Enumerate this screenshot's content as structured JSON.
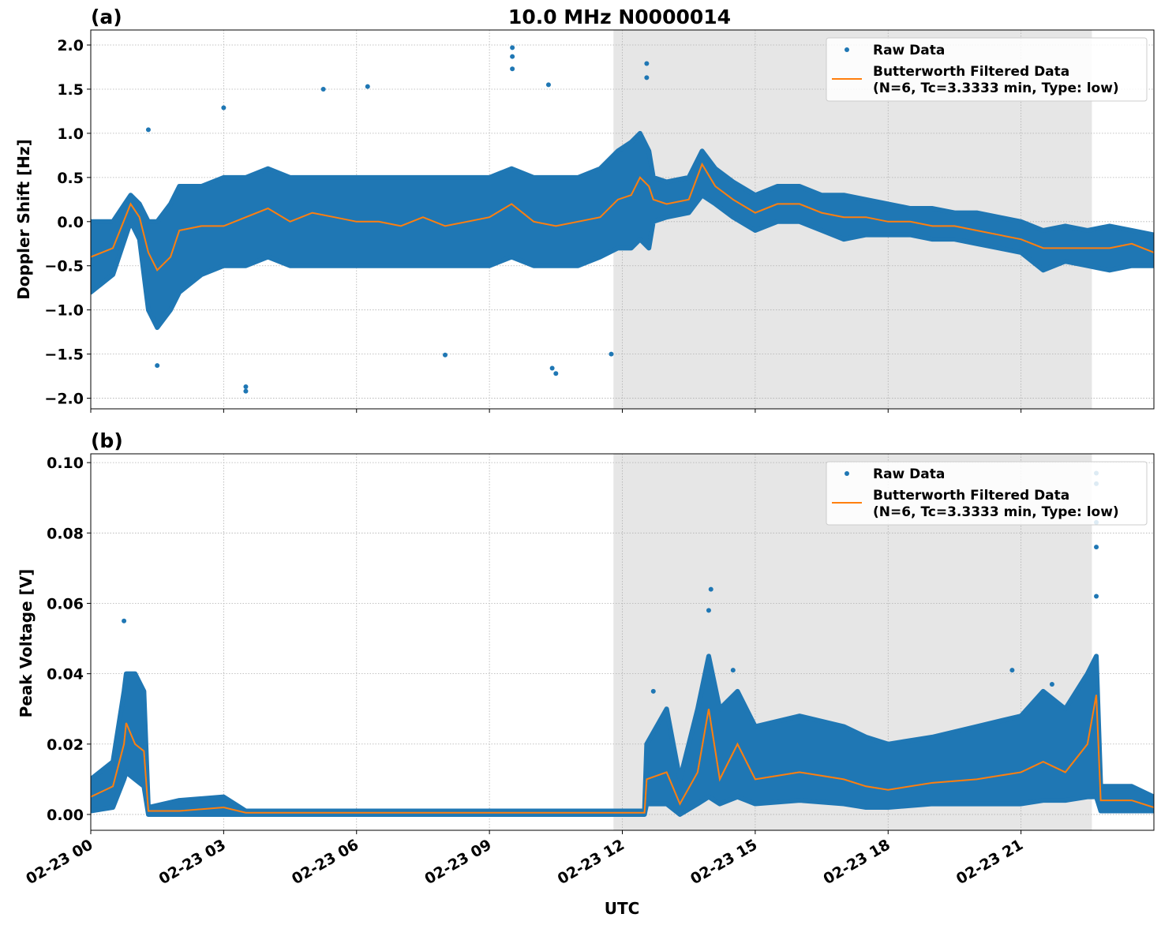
{
  "chart_data": [
    {
      "type": "scatter",
      "panel_label": "(a)",
      "title": "10.0 MHz N0000014",
      "xlabel": "",
      "ylabel": "Doppler Shift [Hz]",
      "xlim": [
        "02-23 00:00",
        "02-24 00:00"
      ],
      "ylim": [
        -2.12,
        2.17
      ],
      "yticks": [
        -2.0,
        -1.5,
        -1.0,
        -0.5,
        0.0,
        0.5,
        1.0,
        1.5,
        2.0
      ],
      "ytick_labels": [
        "−2.0",
        "−1.5",
        "−1.0",
        "−0.5",
        "0.0",
        "0.5",
        "1.0",
        "1.5",
        "2.0"
      ],
      "grid": true,
      "shaded_span": [
        "11:48",
        "22:36"
      ],
      "legend": {
        "placement": "top-right",
        "entries": [
          "Raw Data",
          "Butterworth Filtered Data",
          "(N=6, Tc=3.3333 min, Type: low)"
        ]
      },
      "series_columns": [
        "time",
        "filtered",
        "raw_low",
        "raw_high"
      ],
      "series": [
        [
          "00:00",
          -0.4,
          -0.8,
          0.0
        ],
        [
          "00:30",
          -0.3,
          -0.6,
          0.0
        ],
        [
          "00:54",
          0.2,
          0.0,
          0.3
        ],
        [
          "01:06",
          0.05,
          -0.2,
          0.2
        ],
        [
          "01:18",
          -0.35,
          -1.0,
          0.0
        ],
        [
          "01:30",
          -0.55,
          -1.2,
          0.0
        ],
        [
          "01:48",
          -0.4,
          -1.0,
          0.2
        ],
        [
          "02:00",
          -0.1,
          -0.8,
          0.4
        ],
        [
          "02:30",
          -0.05,
          -0.6,
          0.4
        ],
        [
          "03:00",
          -0.05,
          -0.5,
          0.5
        ],
        [
          "03:30",
          0.05,
          -0.5,
          0.5
        ],
        [
          "04:00",
          0.15,
          -0.4,
          0.6
        ],
        [
          "04:30",
          0.0,
          -0.5,
          0.5
        ],
        [
          "05:00",
          0.1,
          -0.5,
          0.5
        ],
        [
          "05:30",
          0.05,
          -0.5,
          0.5
        ],
        [
          "06:00",
          0.0,
          -0.5,
          0.5
        ],
        [
          "06:30",
          0.0,
          -0.5,
          0.5
        ],
        [
          "07:00",
          -0.05,
          -0.5,
          0.5
        ],
        [
          "07:30",
          0.05,
          -0.5,
          0.5
        ],
        [
          "08:00",
          -0.05,
          -0.5,
          0.5
        ],
        [
          "08:30",
          0.0,
          -0.5,
          0.5
        ],
        [
          "09:00",
          0.05,
          -0.5,
          0.5
        ],
        [
          "09:30",
          0.2,
          -0.4,
          0.6
        ],
        [
          "10:00",
          0.0,
          -0.5,
          0.5
        ],
        [
          "10:30",
          -0.05,
          -0.5,
          0.5
        ],
        [
          "11:00",
          0.0,
          -0.5,
          0.5
        ],
        [
          "11:30",
          0.05,
          -0.4,
          0.6
        ],
        [
          "11:54",
          0.25,
          -0.3,
          0.8
        ],
        [
          "12:12",
          0.3,
          -0.3,
          0.9
        ],
        [
          "12:24",
          0.5,
          -0.2,
          1.0
        ],
        [
          "12:36",
          0.4,
          -0.3,
          0.8
        ],
        [
          "12:42",
          0.25,
          0.0,
          0.5
        ],
        [
          "13:00",
          0.2,
          0.05,
          0.45
        ],
        [
          "13:30",
          0.25,
          0.1,
          0.5
        ],
        [
          "13:48",
          0.65,
          0.3,
          0.8
        ],
        [
          "14:06",
          0.4,
          0.2,
          0.6
        ],
        [
          "14:30",
          0.25,
          0.05,
          0.45
        ],
        [
          "15:00",
          0.1,
          -0.1,
          0.3
        ],
        [
          "15:30",
          0.2,
          0.0,
          0.4
        ],
        [
          "16:00",
          0.2,
          0.0,
          0.4
        ],
        [
          "16:30",
          0.1,
          -0.1,
          0.3
        ],
        [
          "17:00",
          0.05,
          -0.2,
          0.3
        ],
        [
          "17:30",
          0.05,
          -0.15,
          0.25
        ],
        [
          "18:00",
          0.0,
          -0.15,
          0.2
        ],
        [
          "18:30",
          0.0,
          -0.15,
          0.15
        ],
        [
          "19:00",
          -0.05,
          -0.2,
          0.15
        ],
        [
          "19:30",
          -0.05,
          -0.2,
          0.1
        ],
        [
          "20:00",
          -0.1,
          -0.25,
          0.1
        ],
        [
          "20:30",
          -0.15,
          -0.3,
          0.05
        ],
        [
          "21:00",
          -0.2,
          -0.35,
          0.0
        ],
        [
          "21:30",
          -0.3,
          -0.55,
          -0.1
        ],
        [
          "22:00",
          -0.3,
          -0.45,
          -0.05
        ],
        [
          "22:30",
          -0.3,
          -0.5,
          -0.1
        ],
        [
          "23:00",
          -0.3,
          -0.55,
          -0.05
        ],
        [
          "23:30",
          -0.25,
          -0.5,
          -0.1
        ],
        [
          "24:00",
          -0.35,
          -0.5,
          -0.15
        ]
      ],
      "raw_outliers": [
        [
          "09:31",
          1.97
        ],
        [
          "09:31",
          1.87
        ],
        [
          "09:31",
          1.73
        ],
        [
          "03:30",
          -1.87
        ],
        [
          "03:30",
          -1.92
        ],
        [
          "06:15",
          1.53
        ],
        [
          "05:15",
          1.5
        ],
        [
          "03:00",
          1.29
        ],
        [
          "08:00",
          -1.51
        ],
        [
          "10:30",
          -1.72
        ],
        [
          "10:25",
          -1.66
        ],
        [
          "01:30",
          -1.63
        ],
        [
          "12:33",
          1.79
        ],
        [
          "12:33",
          1.63
        ],
        [
          "01:18",
          1.04
        ],
        [
          "11:45",
          -1.5
        ],
        [
          "10:20",
          1.55
        ]
      ]
    },
    {
      "type": "scatter",
      "panel_label": "(b)",
      "title": "",
      "xlabel": "UTC",
      "ylabel": "Peak Voltage [V]",
      "xlim": [
        "02-23 00:00",
        "02-24 00:00"
      ],
      "ylim": [
        -0.0045,
        0.1025
      ],
      "yticks": [
        0.0,
        0.02,
        0.04,
        0.06,
        0.08,
        0.1
      ],
      "ytick_labels": [
        "0.00",
        "0.02",
        "0.04",
        "0.06",
        "0.08",
        "0.10"
      ],
      "xticks": [
        "00:00",
        "03:00",
        "06:00",
        "09:00",
        "12:00",
        "15:00",
        "18:00",
        "21:00"
      ],
      "xtick_labels": [
        "02-23 00",
        "02-23 03",
        "02-23 06",
        "02-23 09",
        "02-23 12",
        "02-23 15",
        "02-23 18",
        "02-23 21"
      ],
      "grid": true,
      "shaded_span": [
        "11:48",
        "22:36"
      ],
      "legend": {
        "placement": "top-right",
        "entries": [
          "Raw Data",
          "Butterworth Filtered Data",
          "(N=6, Tc=3.3333 min, Type: low)"
        ]
      },
      "series_columns": [
        "time",
        "filtered",
        "raw_low",
        "raw_high"
      ],
      "series": [
        [
          "00:00",
          0.005,
          0.001,
          0.01
        ],
        [
          "00:30",
          0.008,
          0.002,
          0.015
        ],
        [
          "00:45",
          0.02,
          0.01,
          0.035
        ],
        [
          "00:48",
          0.026,
          0.012,
          0.04
        ],
        [
          "01:00",
          0.02,
          0.01,
          0.04
        ],
        [
          "01:12",
          0.018,
          0.008,
          0.035
        ],
        [
          "01:18",
          0.001,
          0.0,
          0.002
        ],
        [
          "02:00",
          0.001,
          0.0,
          0.004
        ],
        [
          "03:00",
          0.002,
          0.0,
          0.005
        ],
        [
          "03:30",
          0.0005,
          0.0,
          0.001
        ],
        [
          "12:30",
          0.0005,
          0.0,
          0.001
        ],
        [
          "12:33",
          0.01,
          0.003,
          0.02
        ],
        [
          "13:00",
          0.012,
          0.003,
          0.03
        ],
        [
          "13:18",
          0.003,
          0.0,
          0.01
        ],
        [
          "13:42",
          0.012,
          0.003,
          0.03
        ],
        [
          "13:57",
          0.03,
          0.005,
          0.045
        ],
        [
          "14:12",
          0.01,
          0.003,
          0.03
        ],
        [
          "14:36",
          0.02,
          0.005,
          0.035
        ],
        [
          "15:00",
          0.01,
          0.003,
          0.025
        ],
        [
          "16:00",
          0.012,
          0.004,
          0.028
        ],
        [
          "17:00",
          0.01,
          0.003,
          0.025
        ],
        [
          "17:30",
          0.008,
          0.002,
          0.022
        ],
        [
          "18:00",
          0.007,
          0.002,
          0.02
        ],
        [
          "19:00",
          0.009,
          0.003,
          0.022
        ],
        [
          "20:00",
          0.01,
          0.003,
          0.025
        ],
        [
          "21:00",
          0.012,
          0.003,
          0.028
        ],
        [
          "21:30",
          0.015,
          0.004,
          0.035
        ],
        [
          "22:00",
          0.012,
          0.004,
          0.03
        ],
        [
          "22:30",
          0.02,
          0.005,
          0.04
        ],
        [
          "22:42",
          0.034,
          0.005,
          0.045
        ],
        [
          "22:48",
          0.004,
          0.001,
          0.008
        ],
        [
          "23:30",
          0.004,
          0.001,
          0.008
        ],
        [
          "24:00",
          0.002,
          0.001,
          0.005
        ]
      ],
      "raw_outliers": [
        [
          "22:42",
          0.097
        ],
        [
          "22:42",
          0.094
        ],
        [
          "22:42",
          0.083
        ],
        [
          "22:42",
          0.076
        ],
        [
          "22:42",
          0.062
        ],
        [
          "14:00",
          0.064
        ],
        [
          "13:57",
          0.058
        ],
        [
          "00:45",
          0.055
        ],
        [
          "14:30",
          0.041
        ],
        [
          "20:48",
          0.041
        ],
        [
          "12:42",
          0.035
        ],
        [
          "21:42",
          0.037
        ]
      ]
    }
  ],
  "colors": {
    "raw": "#1f77b4",
    "filtered": "#ff7f0e",
    "shade": "#e6e6e6"
  }
}
